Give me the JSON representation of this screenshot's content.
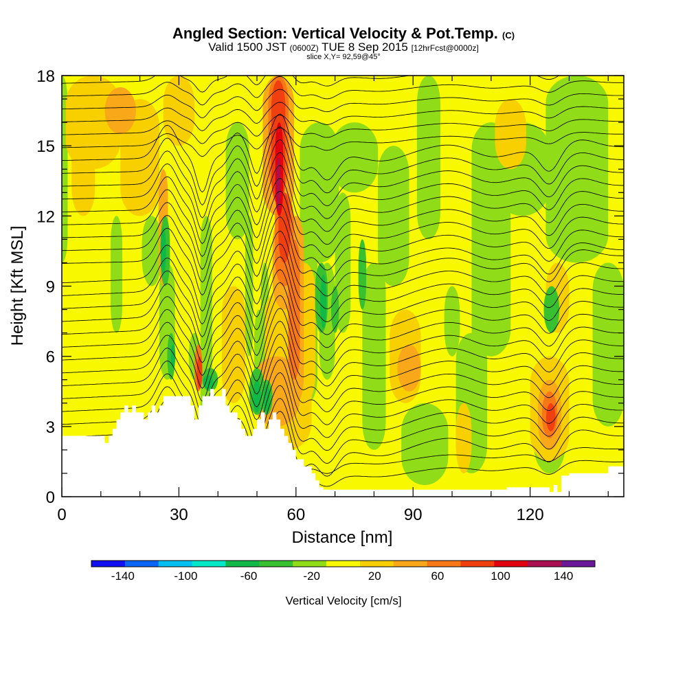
{
  "title": {
    "main": "Angled Section: Vertical Velocity & Pot.Temp.",
    "main_unit": "(C)",
    "valid_prefix": "Valid 1500 JST",
    "valid_utc": "(0600Z)",
    "valid_date": "TUE 8 Sep 2015",
    "forecast": "[12hrFcst@0000z]",
    "slice": "slice X,Y= 92,59@45°"
  },
  "chart_data": {
    "type": "heatmap",
    "xlabel": "Distance [nm]",
    "ylabel": "Height [Kft MSL]",
    "xlim": [
      0,
      144
    ],
    "ylim": [
      0,
      18
    ],
    "x_ticks": [
      "0",
      "30",
      "60",
      "90",
      "120"
    ],
    "y_ticks": [
      "0",
      "3",
      "6",
      "9",
      "12",
      "15",
      "18"
    ],
    "colorbar": {
      "label": "Vertical Velocity [cm/s]",
      "tick_labels": [
        "-140",
        "-100",
        "-60",
        "-20",
        "20",
        "60",
        "100",
        "140"
      ],
      "colors": [
        "#1010f0",
        "#0a64f5",
        "#00c0f0",
        "#00e8c8",
        "#10b848",
        "#38c030",
        "#90dc18",
        "#f8f800",
        "#f8d000",
        "#f8a818",
        "#f87818",
        "#f04010",
        "#e00010",
        "#a81050",
        "#6a1898"
      ]
    },
    "terrain_x": [
      0,
      10,
      11,
      12,
      13,
      14,
      15,
      16,
      17,
      18,
      19,
      20,
      21,
      22,
      23,
      24,
      25,
      26,
      27,
      28,
      29,
      30,
      31,
      32,
      33,
      34,
      35,
      36,
      37,
      38,
      39,
      40,
      41,
      42,
      43,
      44,
      45,
      46,
      47,
      48,
      49,
      50,
      51,
      52,
      53,
      54,
      55,
      56,
      57,
      58,
      59,
      60,
      62,
      64,
      65,
      66,
      67,
      70,
      80,
      90,
      100,
      110,
      114,
      115,
      116,
      120,
      124,
      125,
      126,
      127,
      128,
      130,
      135,
      138,
      140,
      144
    ],
    "terrain_y": [
      2.6,
      2.6,
      2.3,
      2.6,
      2.9,
      3.3,
      3.6,
      3.9,
      3.6,
      3.9,
      3.6,
      3.6,
      3.3,
      3.6,
      3.9,
      3.6,
      3.9,
      4.3,
      4.3,
      4.3,
      4.3,
      4.3,
      4.3,
      4.3,
      3.9,
      3.3,
      3.9,
      4.3,
      4.3,
      4.6,
      4.3,
      4.3,
      4.6,
      3.9,
      3.6,
      3.6,
      3.3,
      2.9,
      2.6,
      2.6,
      2.9,
      3.3,
      3.6,
      2.9,
      3.3,
      3.6,
      3.3,
      2.9,
      2.6,
      2.3,
      2.0,
      1.6,
      1.3,
      1.0,
      0.7,
      0.4,
      0.3,
      0.3,
      0.3,
      0.3,
      0.3,
      0.3,
      0.4,
      0.4,
      0.4,
      0.4,
      0.4,
      0.2,
      0.5,
      0.2,
      0.9,
      1.0,
      1.0,
      1.0,
      1.3,
      1.3
    ]
  }
}
